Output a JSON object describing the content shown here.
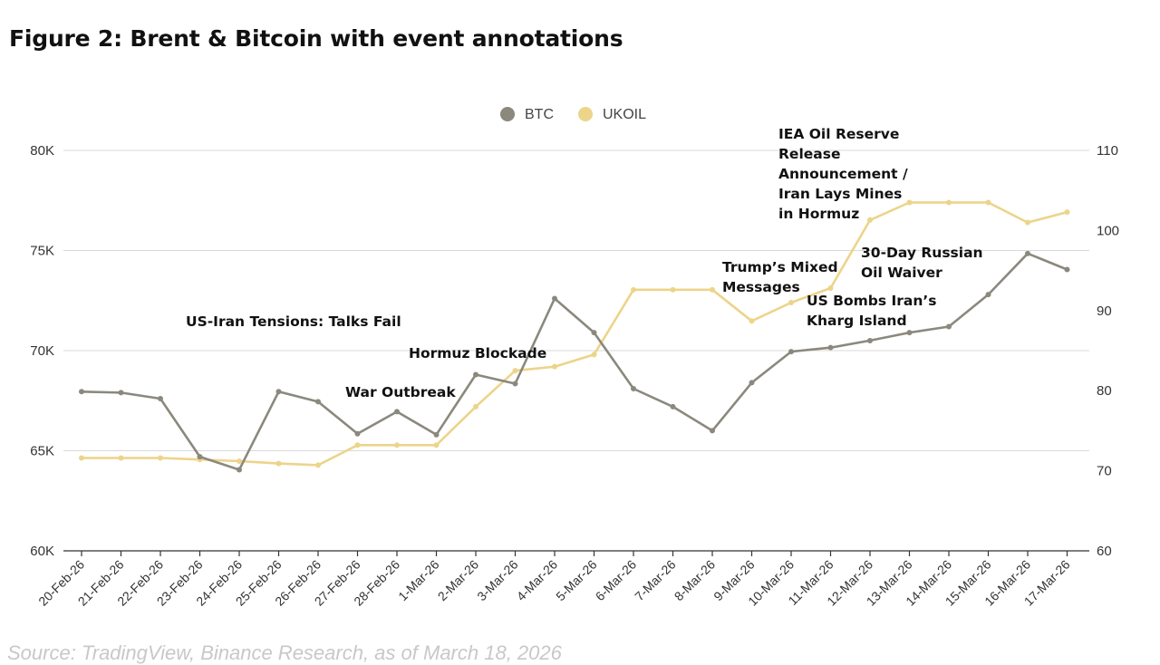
{
  "title": "Figure 2: Brent & Bitcoin with event annotations",
  "source": "Source: TradingView, Binance Research, as of March 18, 2026",
  "colors": {
    "btc": "#8b887d",
    "ukoil": "#ecd48a",
    "grid": "#d9d9d9",
    "axis": "#333333"
  },
  "chart_data": {
    "type": "line",
    "title": "Figure 2: Brent & Bitcoin with event annotations",
    "categories": [
      "20-Feb-26",
      "21-Feb-26",
      "22-Feb-26",
      "23-Feb-26",
      "24-Feb-26",
      "25-Feb-26",
      "26-Feb-26",
      "27-Feb-26",
      "28-Feb-26",
      "1-Mar-26",
      "2-Mar-26",
      "3-Mar-26",
      "4-Mar-26",
      "5-Mar-26",
      "6-Mar-26",
      "7-Mar-26",
      "8-Mar-26",
      "9-Mar-26",
      "10-Mar-26",
      "11-Mar-26",
      "12-Mar-26",
      "13-Mar-26",
      "14-Mar-26",
      "15-Mar-26",
      "16-Mar-26",
      "17-Mar-26"
    ],
    "series": [
      {
        "name": "BTC",
        "axis": "left",
        "values": [
          67950,
          67900,
          67600,
          64700,
          64050,
          67950,
          67450,
          65850,
          66950,
          65800,
          68800,
          68350,
          72600,
          70900,
          68100,
          67200,
          66000,
          68400,
          69950,
          70150,
          70500,
          70900,
          71200,
          72800,
          74850,
          74050
        ]
      },
      {
        "name": "UKOIL",
        "axis": "right",
        "values": [
          71.6,
          71.6,
          71.6,
          71.4,
          71.2,
          70.9,
          70.7,
          73.2,
          73.2,
          73.2,
          78.0,
          82.5,
          83.0,
          84.5,
          92.6,
          92.6,
          92.6,
          88.7,
          91.0,
          92.8,
          101.3,
          103.5,
          103.5,
          103.5,
          101.0,
          102.3
        ]
      }
    ],
    "y_left": {
      "ylim": [
        60000,
        80000
      ],
      "ticks": [
        60000,
        65000,
        70000,
        75000,
        80000
      ],
      "tick_labels": [
        "60K",
        "65K",
        "70K",
        "75K",
        "80K"
      ]
    },
    "y_right": {
      "ylim": [
        60,
        110
      ],
      "ticks": [
        60,
        70,
        80,
        90,
        100,
        110
      ],
      "tick_labels": [
        "60",
        "70",
        "80",
        "90",
        "100",
        "110"
      ]
    },
    "legend": {
      "position": "top-center",
      "entries": [
        "BTC",
        "UKOIL"
      ]
    },
    "annotations": [
      {
        "lines": [
          "US-Iran Tensions: Talks Fail"
        ]
      },
      {
        "lines": [
          "War Outbreak"
        ]
      },
      {
        "lines": [
          "Hormuz Blockade"
        ]
      },
      {
        "lines": [
          "Trump’s Mixed",
          "Messages"
        ]
      },
      {
        "lines": [
          "US Bombs Iran’s",
          "Kharg Island"
        ]
      },
      {
        "lines": [
          "30-Day Russian",
          "Oil Waiver"
        ]
      },
      {
        "lines": [
          "IEA Oil Reserve",
          "Release",
          "Announcement /",
          "Iran Lays Mines",
          "in Hormuz"
        ]
      }
    ],
    "grid": true
  }
}
